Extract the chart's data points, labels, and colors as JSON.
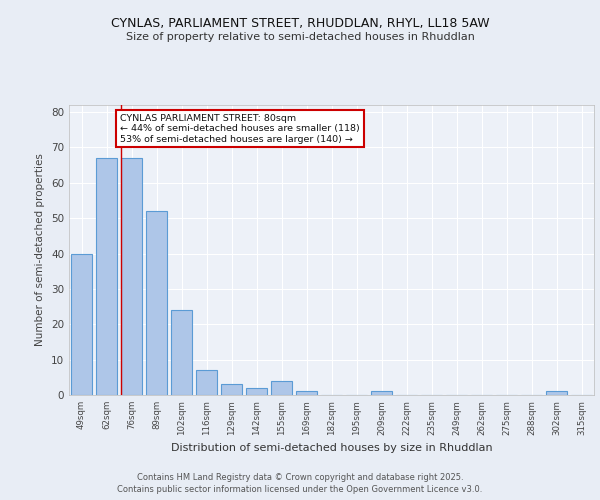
{
  "title_line1": "CYNLAS, PARLIAMENT STREET, RHUDDLAN, RHYL, LL18 5AW",
  "title_line2": "Size of property relative to semi-detached houses in Rhuddlan",
  "xlabel": "Distribution of semi-detached houses by size in Rhuddlan",
  "ylabel": "Number of semi-detached properties",
  "categories": [
    "49sqm",
    "62sqm",
    "76sqm",
    "89sqm",
    "102sqm",
    "116sqm",
    "129sqm",
    "142sqm",
    "155sqm",
    "169sqm",
    "182sqm",
    "195sqm",
    "209sqm",
    "222sqm",
    "235sqm",
    "249sqm",
    "262sqm",
    "275sqm",
    "288sqm",
    "302sqm",
    "315sqm"
  ],
  "values": [
    40,
    67,
    67,
    52,
    24,
    7,
    3,
    2,
    4,
    1,
    0,
    0,
    1,
    0,
    0,
    0,
    0,
    0,
    0,
    1,
    0
  ],
  "bar_color": "#aec6e8",
  "bar_edge_color": "#5b9bd5",
  "property_size": "80sqm",
  "pct_smaller": 44,
  "count_smaller": 118,
  "pct_larger": 53,
  "count_larger": 140,
  "annotation_label": "CYNLAS PARLIAMENT STREET: 80sqm",
  "red_line_x": 2,
  "ylim": [
    0,
    82
  ],
  "yticks": [
    0,
    10,
    20,
    30,
    40,
    50,
    60,
    70,
    80
  ],
  "bg_color": "#e8edf5",
  "plot_bg_color": "#edf1f8",
  "grid_color": "#ffffff",
  "footer_line1": "Contains HM Land Registry data © Crown copyright and database right 2025.",
  "footer_line2": "Contains public sector information licensed under the Open Government Licence v3.0."
}
